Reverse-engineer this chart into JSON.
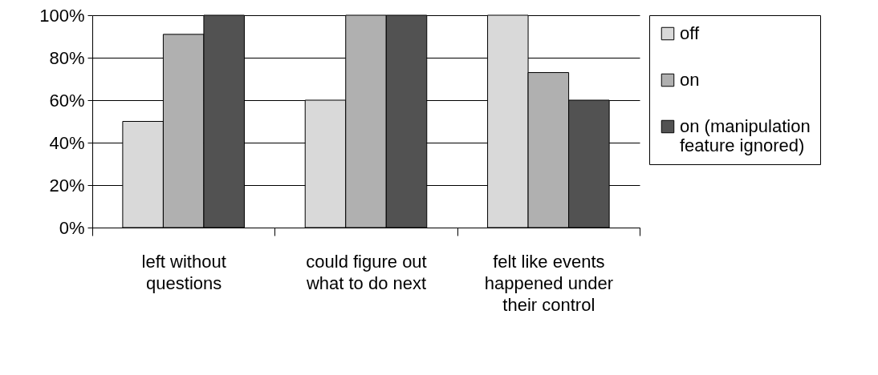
{
  "chart_data": {
    "type": "bar",
    "categories": [
      "left without questions",
      "could figure out what to do next",
      "felt like events happened under their control"
    ],
    "series": [
      {
        "name": "off",
        "color": "#d9d9d9",
        "values": [
          50,
          60,
          100
        ]
      },
      {
        "name": "on",
        "color": "#b0b0b0",
        "values": [
          91,
          100,
          73
        ]
      },
      {
        "name": "on (manipulation feature ignored)",
        "color": "#525252",
        "values": [
          100,
          100,
          60
        ]
      }
    ],
    "ylim": [
      0,
      100
    ],
    "yticks": [
      {
        "value": 0,
        "label": "0%"
      },
      {
        "value": 20,
        "label": "20%"
      },
      {
        "value": 40,
        "label": "40%"
      },
      {
        "value": 60,
        "label": "60%"
      },
      {
        "value": 80,
        "label": "80%"
      },
      {
        "value": 100,
        "label": "100%"
      }
    ],
    "grid": "y",
    "legend": "right"
  }
}
